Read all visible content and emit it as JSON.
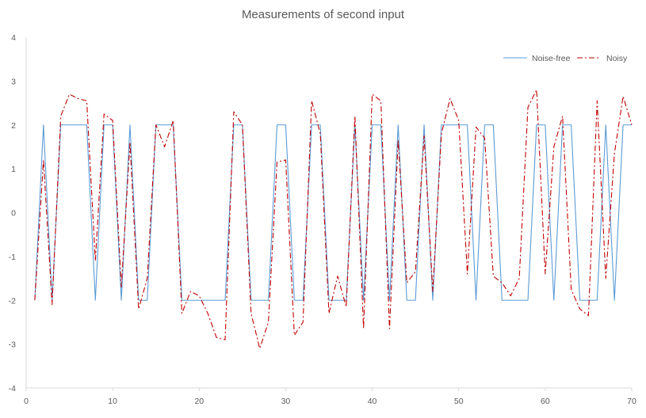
{
  "chart_data": {
    "type": "line",
    "title": "Measurements of second input",
    "xlabel": "",
    "ylabel": "",
    "xlim": [
      0,
      70
    ],
    "ylim": [
      -4,
      4
    ],
    "x_ticks": [
      0,
      10,
      20,
      30,
      40,
      50,
      60,
      70
    ],
    "y_ticks": [
      -4,
      -3,
      -2,
      -1,
      0,
      1,
      2,
      3,
      4
    ],
    "grid": false,
    "legend_position": "top-right",
    "x": [
      1,
      2,
      3,
      4,
      5,
      6,
      7,
      8,
      9,
      10,
      11,
      12,
      13,
      14,
      15,
      16,
      17,
      18,
      19,
      20,
      21,
      22,
      23,
      24,
      25,
      26,
      27,
      28,
      29,
      30,
      31,
      32,
      33,
      34,
      35,
      36,
      37,
      38,
      39,
      40,
      41,
      42,
      43,
      44,
      45,
      46,
      47,
      48,
      49,
      50,
      51,
      52,
      53,
      54,
      55,
      56,
      57,
      58,
      59,
      60,
      61,
      62,
      63,
      64,
      65,
      66,
      67,
      68,
      69,
      70
    ],
    "series": [
      {
        "name": "Noise-free",
        "color": "#5b9bd5",
        "style": "solid",
        "values": [
          -2,
          2,
          -2,
          2,
          2,
          2,
          2,
          -2,
          2,
          2,
          -2,
          2,
          -2,
          -2,
          2,
          2,
          2,
          -2,
          -2,
          -2,
          -2,
          -2,
          -2,
          2,
          2,
          -2,
          -2,
          -2,
          2,
          2,
          -2,
          -2,
          2,
          2,
          -2,
          -2,
          -2,
          2,
          -2,
          2,
          2,
          -2,
          2,
          -2,
          -2,
          2,
          -2,
          2,
          2,
          2,
          2,
          -2,
          2,
          2,
          -2,
          -2,
          -2,
          -2,
          2,
          2,
          -2,
          2,
          2,
          -2,
          -2,
          -2,
          2,
          -2,
          2,
          2
        ]
      },
      {
        "name": "Noisy",
        "color": "#c00000",
        "style": "dash-dot",
        "values": [
          -2,
          1.2,
          -2.1,
          2.2,
          2.7,
          2.6,
          2.55,
          -1.1,
          2.25,
          2.1,
          -1.7,
          1.6,
          -2.2,
          -1.5,
          2,
          1.5,
          2.1,
          -2.3,
          -1.8,
          -1.9,
          -2.3,
          -2.85,
          -2.9,
          2.3,
          2,
          -2.3,
          -3.1,
          -2.5,
          1.15,
          1.2,
          -2.8,
          -2.5,
          2.55,
          1.8,
          -2.3,
          -1.45,
          -2.15,
          2.2,
          -2.65,
          2.7,
          2.55,
          -2.65,
          1.65,
          -1.6,
          -1.35,
          1.75,
          -1.8,
          1.8,
          2.6,
          2.1,
          -1.4,
          1.95,
          1.7,
          -1.45,
          -1.6,
          -1.9,
          -1.5,
          2.4,
          2.8,
          -1.4,
          1.5,
          2.2,
          -1.75,
          -2.2,
          -2.35,
          2.55,
          -1.5,
          1.35,
          2.65,
          2
        ]
      }
    ]
  }
}
